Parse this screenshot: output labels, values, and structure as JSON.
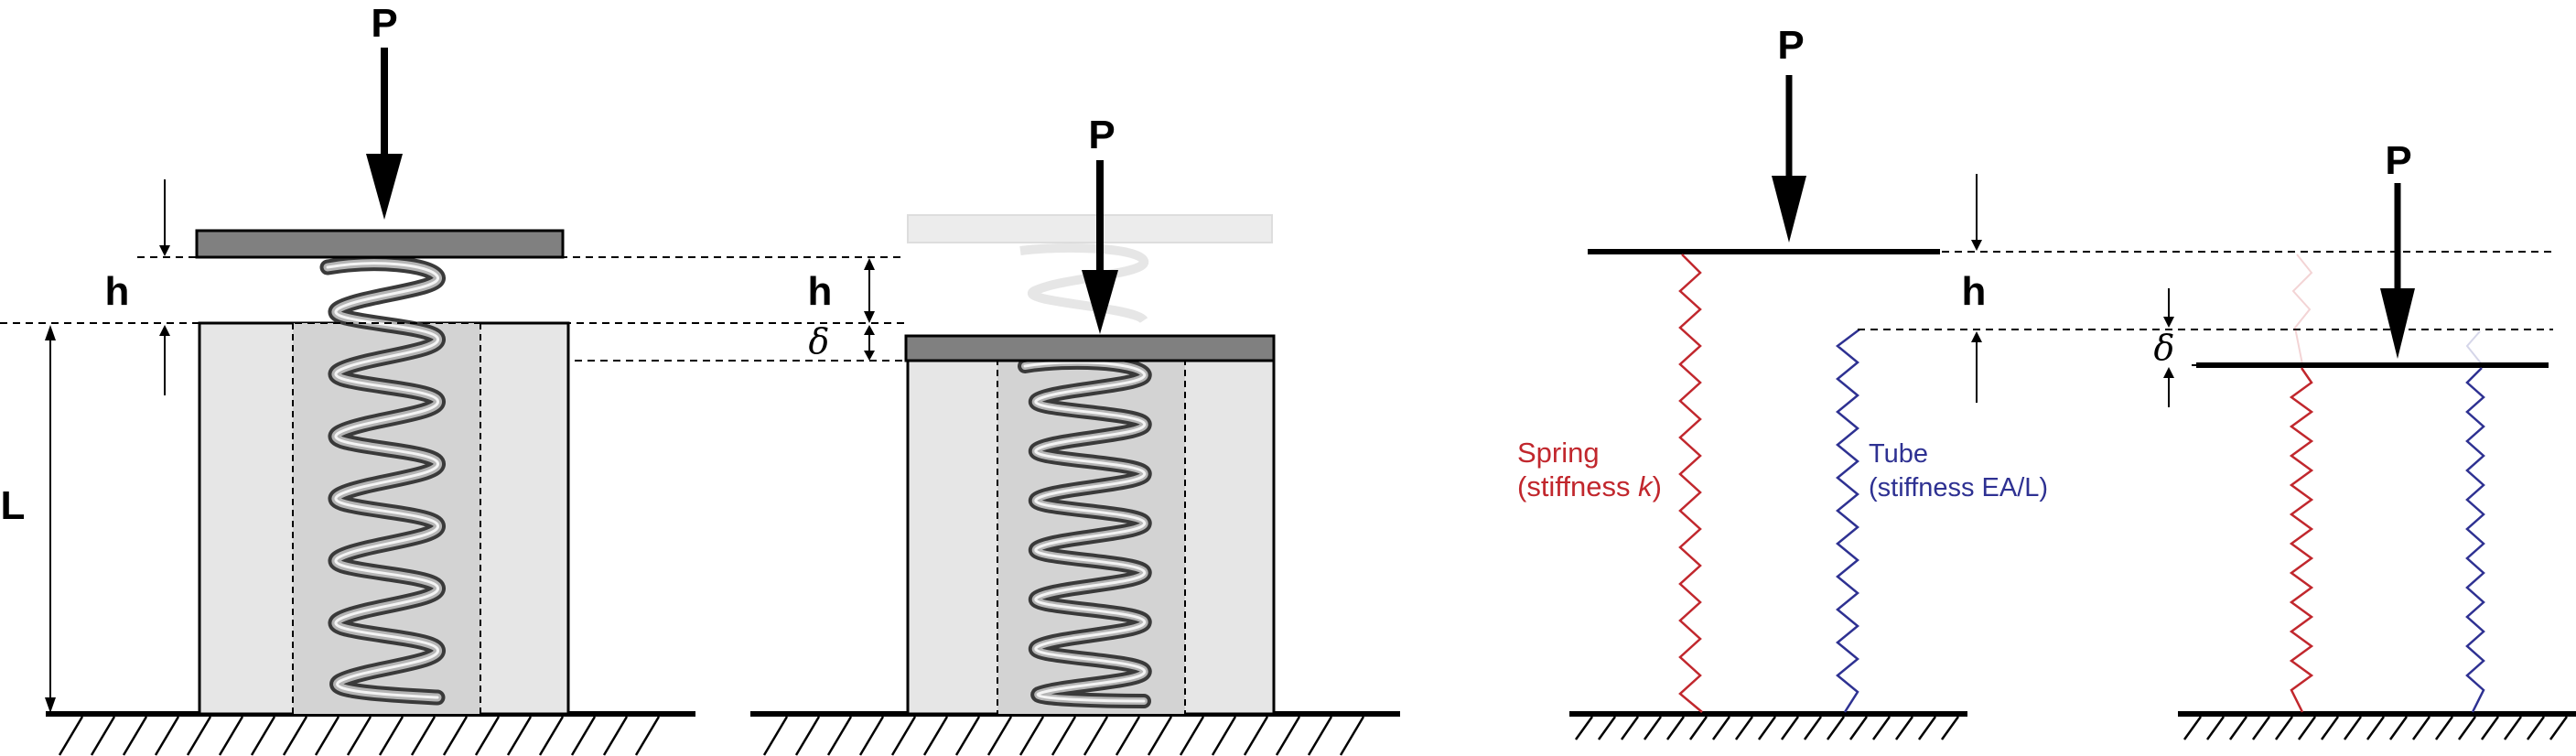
{
  "labels": {
    "load": "P",
    "gap": "h",
    "length": "L",
    "deflection": "δ"
  },
  "legend": {
    "spring_name": "Spring",
    "spring_stiffness_prefix": "(stiffness ",
    "spring_stiffness_symbol": "k",
    "spring_stiffness_suffix": ")",
    "tube_name": "Tube",
    "tube_stiffness": "(stiffness EA/L)"
  },
  "colors": {
    "spring": "#c1272d",
    "tube": "#2e3192",
    "plate": "#808080",
    "tube_fill": "#e6e6e6",
    "outline": "#000000"
  }
}
